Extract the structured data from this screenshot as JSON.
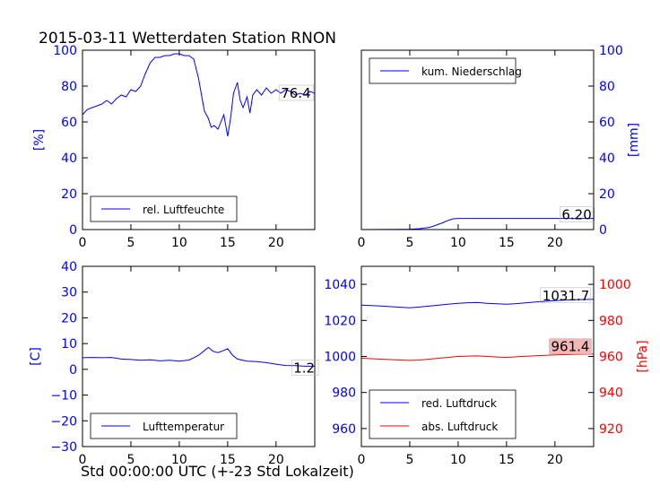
{
  "title": "2015-03-11 Wetterdaten Station RNON",
  "xlabel": "Std 00:00:00 UTC (+-23 Std Lokalzeit)",
  "colors": {
    "blue": "#0000ff",
    "red": "#ff0000",
    "ann_red_bg": "#f4b6b6"
  },
  "chart_data": [
    {
      "type": "line",
      "ylabel": "[%]",
      "xlim": [
        0,
        24
      ],
      "ylim": [
        0,
        100
      ],
      "x_ticks": [
        0,
        5,
        10,
        15,
        20
      ],
      "y_ticks": [
        0,
        20,
        40,
        60,
        80,
        100
      ],
      "legend_position": "bottom-left",
      "annotation": "76.4",
      "series": [
        {
          "name": "rel. Luftfeuchte",
          "color": "#0000ff",
          "x": [
            0,
            0.5,
            1,
            1.5,
            2,
            2.5,
            3,
            3.5,
            4,
            4.5,
            5,
            5.5,
            6,
            6.5,
            7,
            7.5,
            8,
            8.5,
            9,
            9.5,
            10,
            10.5,
            11,
            11.5,
            12,
            12.3,
            12.6,
            13,
            13.3,
            13.6,
            14,
            14.3,
            14.6,
            15,
            15.3,
            15.6,
            16,
            16.3,
            16.6,
            17,
            17.3,
            17.6,
            18,
            18.5,
            19,
            19.5,
            20,
            20.5,
            21,
            21.5,
            22,
            22.5,
            23,
            23.5,
            24
          ],
          "y": [
            64,
            67,
            68,
            69,
            70,
            72,
            70,
            73,
            75,
            74,
            78,
            77,
            80,
            87,
            93,
            96,
            96,
            97,
            97,
            98,
            98,
            97,
            97,
            95,
            84,
            75,
            66,
            62,
            57,
            58,
            56,
            60,
            64,
            52,
            62,
            76,
            82,
            72,
            68,
            74,
            65,
            75,
            78,
            75,
            79,
            76,
            78,
            76,
            78,
            77,
            75,
            76,
            75,
            77,
            76
          ]
        }
      ]
    },
    {
      "type": "line",
      "ylabel": "[mm]",
      "xlim": [
        0,
        24
      ],
      "ylim": [
        0,
        100
      ],
      "x_ticks": [
        0,
        5,
        10,
        15,
        20
      ],
      "y_ticks": [
        0,
        20,
        40,
        60,
        80,
        100
      ],
      "legend_position": "top-left",
      "annotation": "6.20",
      "series": [
        {
          "name": "kum. Niederschlag",
          "color": "#0000ff",
          "x": [
            0,
            4,
            5,
            6,
            7,
            7.5,
            8,
            8.5,
            9,
            9.5,
            10,
            12,
            15,
            18,
            20,
            22,
            24
          ],
          "y": [
            0,
            0.1,
            0.2,
            0.5,
            1.2,
            2.0,
            3.0,
            4.0,
            5.2,
            6.0,
            6.2,
            6.2,
            6.2,
            6.2,
            6.2,
            6.2,
            6.2
          ]
        }
      ]
    },
    {
      "type": "line",
      "ylabel": "[C]",
      "xlim": [
        0,
        24
      ],
      "ylim": [
        -30,
        40
      ],
      "x_ticks": [
        0,
        5,
        10,
        15,
        20
      ],
      "y_ticks": [
        -30,
        -20,
        -10,
        0,
        10,
        20,
        30,
        40
      ],
      "legend_position": "bottom-left",
      "annotation": "1.2",
      "series": [
        {
          "name": "Lufttemperatur",
          "color": "#0000ff",
          "x": [
            0,
            1,
            2,
            3,
            4,
            5,
            6,
            7,
            8,
            9,
            10,
            11,
            11.5,
            12,
            12.5,
            13,
            13.5,
            14,
            14.5,
            15,
            15.5,
            16,
            17,
            18,
            19,
            20,
            21,
            22,
            23,
            24
          ],
          "y": [
            4.5,
            4.6,
            4.5,
            4.6,
            4.0,
            3.8,
            3.5,
            3.7,
            3.3,
            3.5,
            3.2,
            3.6,
            4.5,
            5.5,
            7.0,
            8.5,
            7.0,
            6.5,
            7.2,
            8.0,
            5.5,
            4.0,
            3.2,
            3.0,
            2.6,
            2.0,
            1.5,
            1.4,
            1.2,
            1.2
          ]
        }
      ]
    },
    {
      "type": "line",
      "ylabel_right": "[hPa]",
      "xlim": [
        0,
        24
      ],
      "ylim_left": [
        950,
        1050
      ],
      "ylim_right": [
        910,
        1010
      ],
      "x_ticks": [
        0,
        5,
        10,
        15,
        20
      ],
      "y_ticks_left": [
        960,
        980,
        1000,
        1020,
        1040
      ],
      "y_ticks_right": [
        920,
        940,
        960,
        980,
        1000
      ],
      "legend_position": "bottom-left",
      "annotations": [
        {
          "text": "1031.7",
          "series": "red. Luftdruck"
        },
        {
          "text": "961.4",
          "series": "abs. Luftdruck"
        }
      ],
      "series": [
        {
          "name": "red. Luftdruck",
          "color": "#0000ff",
          "axis": "left",
          "x": [
            0,
            2,
            4,
            5,
            6,
            8,
            10,
            11,
            12,
            13,
            14,
            15,
            16,
            18,
            20,
            22,
            24
          ],
          "y": [
            1028.5,
            1028.0,
            1027.3,
            1027.0,
            1027.4,
            1028.5,
            1029.5,
            1029.8,
            1029.9,
            1029.5,
            1029.2,
            1029.0,
            1029.3,
            1030.2,
            1031.0,
            1031.5,
            1031.7
          ]
        },
        {
          "name": "abs. Luftdruck",
          "color": "#ff0000",
          "axis": "right",
          "x": [
            0,
            2,
            4,
            5,
            6,
            8,
            10,
            11,
            12,
            13,
            14,
            15,
            16,
            18,
            20,
            22,
            24
          ],
          "y": [
            959.0,
            958.5,
            958.0,
            957.8,
            958.0,
            959.0,
            960.0,
            960.2,
            960.3,
            960.0,
            959.7,
            959.5,
            959.8,
            960.4,
            960.9,
            961.2,
            961.4
          ]
        }
      ]
    }
  ]
}
